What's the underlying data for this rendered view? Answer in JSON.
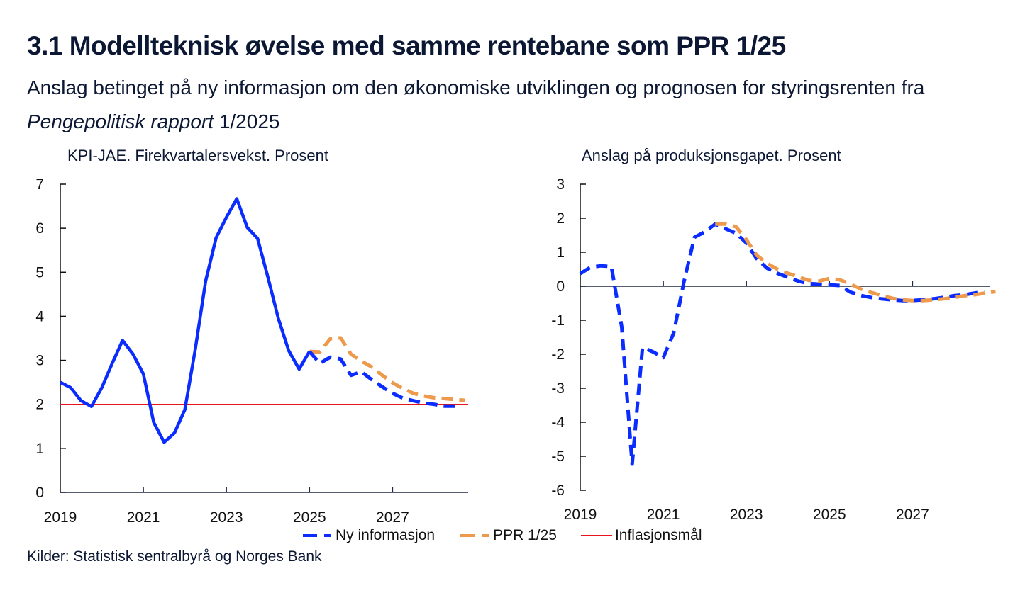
{
  "header": {
    "title": "3.1 Modellteknisk øvelse med samme rentebane som PPR 1/25",
    "subtitle_part1": "Anslag betinget på ny informasjon om den økonomiske utviklingen og prognosen for styringsrenten fra ",
    "subtitle_italic": "Pengepolitisk rapport",
    "subtitle_part2": " 1/2025"
  },
  "legend": {
    "items": [
      {
        "label": "Ny informasjon",
        "style": "dashed",
        "color": "#0a2cff"
      },
      {
        "label": "PPR 1/25",
        "style": "dashed",
        "color": "#ee9a4d"
      },
      {
        "label": "Inflasjonsmål",
        "style": "solid",
        "color": "#e8141c"
      }
    ]
  },
  "footer": {
    "source": "Kilder: Statistisk sentralbyrå og Norges Bank"
  },
  "chart_data": [
    {
      "type": "line",
      "title": "KPI-JAE. Firekvartalersvekst. Prosent",
      "xlabel": "",
      "ylabel": "",
      "x_start": "2019Q1",
      "x_tick_labels": [
        "2019",
        "2021",
        "2023",
        "2025",
        "2027"
      ],
      "x_range": [
        2019.0,
        2028.9
      ],
      "y_tick_labels": [
        "0",
        "1",
        "2",
        "3",
        "4",
        "5",
        "6",
        "7"
      ],
      "ylim": [
        0,
        7
      ],
      "grid": false,
      "series": [
        {
          "name": "Ny informasjon (historikk)",
          "color": "#0a2cff",
          "style": "solid",
          "start": 2019.0,
          "values": [
            2.5,
            2.38,
            2.08,
            1.95,
            2.38,
            2.93,
            3.45,
            3.14,
            2.69,
            1.59,
            1.14,
            1.35,
            1.88,
            3.25,
            4.8,
            5.78,
            6.25,
            6.67,
            6.02,
            5.77,
            4.88,
            3.95,
            3.22,
            2.8,
            3.2
          ]
        },
        {
          "name": "Ny informasjon",
          "color": "#0a2cff",
          "style": "dashed",
          "start": 2025.0,
          "values": [
            3.2,
            2.93,
            3.07,
            3.03,
            2.66,
            2.74,
            2.56,
            2.4,
            2.25,
            2.14,
            2.08,
            2.03,
            2.0,
            1.96,
            1.96
          ]
        },
        {
          "name": "PPR 1/25",
          "color": "#ee9a4d",
          "style": "dashed",
          "start": 2025.0,
          "values": [
            3.2,
            3.19,
            3.49,
            3.51,
            3.14,
            2.98,
            2.85,
            2.66,
            2.49,
            2.36,
            2.25,
            2.19,
            2.15,
            2.13,
            2.11,
            2.09
          ]
        },
        {
          "name": "Inflasjonsmål",
          "color": "#e8141c",
          "style": "solid",
          "constant": 2.0
        }
      ]
    },
    {
      "type": "line",
      "title": "Anslag på produksjonsgapet. Prosent",
      "xlabel": "",
      "ylabel": "",
      "x_start": "2019Q1",
      "x_tick_labels": [
        "2019",
        "2021",
        "2023",
        "2025",
        "2027"
      ],
      "x_range": [
        2019.0,
        2028.9
      ],
      "y_tick_labels": [
        "3",
        "2",
        "1",
        "0",
        "-1",
        "-2",
        "-3",
        "-4",
        "-5",
        "-6"
      ],
      "ylim": [
        -6,
        3
      ],
      "grid": false,
      "series": [
        {
          "name": "Ny informasjon",
          "color": "#0a2cff",
          "style": "dashed",
          "start": 2019.0,
          "values": [
            0.37,
            0.56,
            0.6,
            0.58,
            -1.2,
            -5.23,
            -1.8,
            -1.93,
            -2.1,
            -1.38,
            0.15,
            1.44,
            1.6,
            1.83,
            1.69,
            1.56,
            1.27,
            0.81,
            0.53,
            0.38,
            0.26,
            0.15,
            0.08,
            0.06,
            0.04,
            0.02,
            -0.17,
            -0.27,
            -0.33,
            -0.37,
            -0.4,
            -0.42,
            -0.42,
            -0.4,
            -0.37,
            -0.33,
            -0.28,
            -0.25,
            -0.2,
            -0.16
          ]
        },
        {
          "name": "PPR 1/25",
          "color": "#ee9a4d",
          "style": "dashed",
          "start": 2022.25,
          "values": [
            1.83,
            1.83,
            1.75,
            1.37,
            0.91,
            0.67,
            0.5,
            0.38,
            0.28,
            0.17,
            0.15,
            0.23,
            0.19,
            0.07,
            -0.08,
            -0.18,
            -0.27,
            -0.35,
            -0.4,
            -0.42,
            -0.42,
            -0.4,
            -0.37,
            -0.33,
            -0.28,
            -0.25,
            -0.2,
            -0.16
          ]
        }
      ]
    }
  ]
}
